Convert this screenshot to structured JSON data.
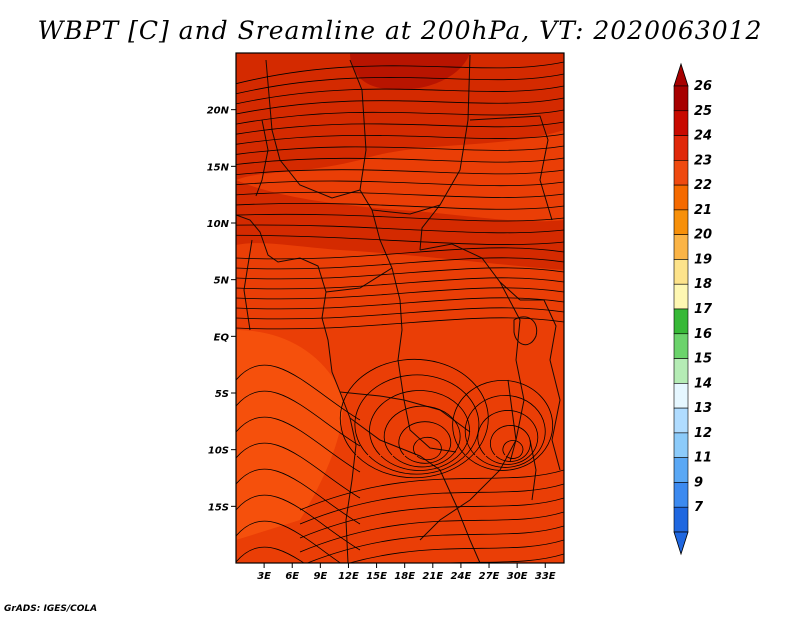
{
  "title": "WBPT [C] and Sreamline at 200hPa, VT: 2020063012",
  "credit": "GrADS: IGES/COLA",
  "map": {
    "lon_range": [
      0,
      35
    ],
    "lat_range": [
      -20,
      25
    ],
    "lon_ticks": [
      "3E",
      "6E",
      "9E",
      "12E",
      "15E",
      "18E",
      "21E",
      "24E",
      "27E",
      "30E",
      "33E"
    ],
    "lon_values": [
      3,
      6,
      9,
      12,
      15,
      18,
      21,
      24,
      27,
      30,
      33
    ],
    "lat_ticks": [
      "20N",
      "15N",
      "10N",
      "5N",
      "EQ",
      "5S",
      "10S",
      "15S"
    ],
    "lat_values": [
      20,
      15,
      10,
      5,
      0,
      -5,
      -10,
      -15
    ],
    "field_colors": {
      "dark": "#b81400",
      "mid": "#d42a00",
      "base": "#ea3e06",
      "light": "#f5500c"
    }
  },
  "colorbar": {
    "labels": [
      "26",
      "25",
      "24",
      "23",
      "22",
      "21",
      "20",
      "19",
      "18",
      "17",
      "16",
      "15",
      "14",
      "13",
      "12",
      "11",
      "9",
      "7"
    ],
    "colors": [
      "#a70000",
      "#c80a00",
      "#e0280a",
      "#ef4a10",
      "#f56a00",
      "#f7900a",
      "#fbb446",
      "#fde38b",
      "#fef7b2",
      "#37b937",
      "#6bd36b",
      "#b5ecb5",
      "#e6f7ff",
      "#b0dcff",
      "#8ccbfa",
      "#5aa8f5",
      "#3c8af0",
      "#1f67e0"
    ]
  }
}
